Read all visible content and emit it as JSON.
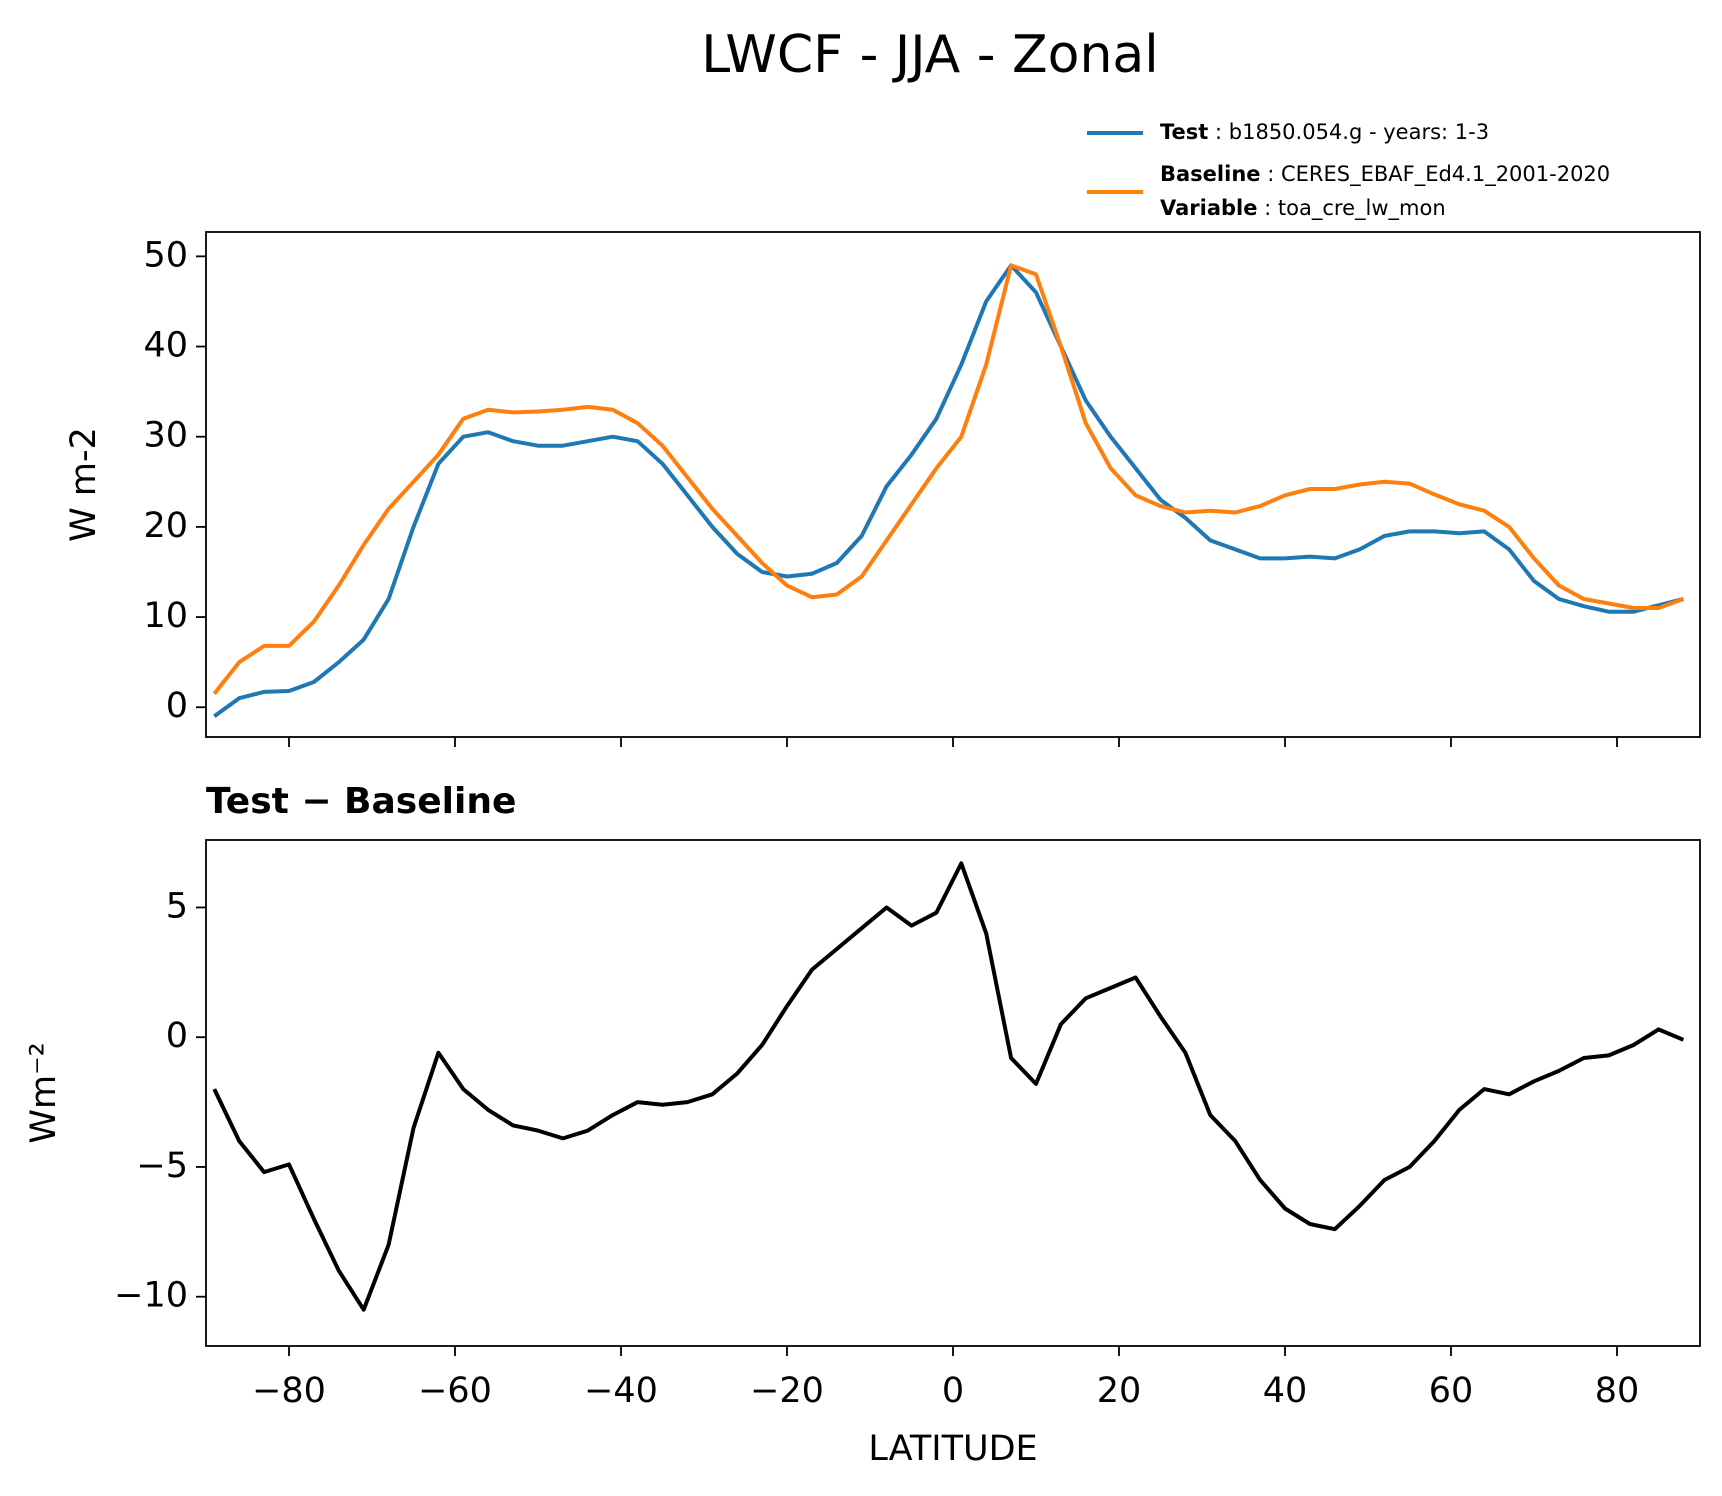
{
  "chart_data": [
    {
      "type": "line",
      "title": "LWCF - JJA - Zonal",
      "ylabel": "W m-2",
      "legend_separator": " : ",
      "x": [
        -89,
        -86,
        -83,
        -80,
        -77,
        -74,
        -71,
        -68,
        -65,
        -62,
        -59,
        -56,
        -53,
        -50,
        -47,
        -44,
        -41,
        -38,
        -35,
        -32,
        -29,
        -26,
        -23,
        -20,
        -17,
        -14,
        -11,
        -8,
        -5,
        -2,
        1,
        4,
        7,
        10,
        13,
        16,
        19,
        22,
        25,
        28,
        31,
        34,
        37,
        40,
        43,
        46,
        49,
        52,
        55,
        58,
        61,
        64,
        67,
        70,
        73,
        76,
        79,
        82,
        85,
        88
      ],
      "series": [
        {
          "name": "Test",
          "description": "b1850.054.g - years: 1-3",
          "color": "#1f77b4",
          "values": [
            -1,
            1,
            1.7,
            1.8,
            2.8,
            5,
            7.5,
            12,
            20,
            27,
            30,
            30.5,
            29.5,
            29,
            29,
            29.5,
            30,
            29.5,
            27,
            23.5,
            20,
            17,
            15,
            14.5,
            14.8,
            16,
            19,
            24.5,
            28,
            32,
            38,
            45,
            49,
            46,
            40,
            34,
            30,
            26.5,
            23,
            21,
            18.5,
            17.5,
            16.5,
            16.5,
            16.7,
            16.5,
            17.5,
            19,
            19.5,
            19.5,
            19.3,
            19.5,
            17.5,
            14,
            12,
            11.2,
            10.6,
            10.6,
            11.3,
            12
          ]
        },
        {
          "name": "Baseline",
          "description": "CERES_EBAF_Ed4.1_2001-2020",
          "extra_name": "Variable",
          "extra_description": "toa_cre_lw_mon",
          "color": "#ff7f0e",
          "values": [
            1.5,
            5,
            6.8,
            6.8,
            9.5,
            13.5,
            18,
            22,
            25,
            28,
            32,
            33,
            32.7,
            32.8,
            33,
            33.3,
            33,
            31.5,
            29,
            25.5,
            22,
            19,
            16,
            13.5,
            12.2,
            12.5,
            14.5,
            18.5,
            22.5,
            26.5,
            30,
            38,
            49,
            48,
            40,
            31.5,
            26.5,
            23.5,
            22.3,
            21.6,
            21.8,
            21.6,
            22.3,
            23.5,
            24.2,
            24.2,
            24.7,
            25,
            24.8,
            23.6,
            22.5,
            21.8,
            20,
            16.5,
            13.5,
            12,
            11.5,
            11,
            11,
            12
          ]
        }
      ],
      "xlim": [
        -90,
        90
      ],
      "xticks": [
        -80,
        -60,
        -40,
        -20,
        0,
        20,
        40,
        60,
        80
      ],
      "ylim": [
        -3.3,
        52.7
      ],
      "yticks": [
        0,
        10,
        20,
        30,
        40,
        50
      ]
    },
    {
      "type": "line",
      "title": "Test − Baseline",
      "ylabel": "Wm⁻²",
      "xlabel": "LATITUDE",
      "x": [
        -89,
        -86,
        -83,
        -80,
        -77,
        -74,
        -71,
        -68,
        -65,
        -62,
        -59,
        -56,
        -53,
        -50,
        -47,
        -44,
        -41,
        -38,
        -35,
        -32,
        -29,
        -26,
        -23,
        -20,
        -17,
        -14,
        -11,
        -8,
        -5,
        -2,
        1,
        4,
        7,
        10,
        13,
        16,
        19,
        22,
        25,
        28,
        31,
        34,
        37,
        40,
        43,
        46,
        49,
        52,
        55,
        58,
        61,
        64,
        67,
        70,
        73,
        76,
        79,
        82,
        85,
        88
      ],
      "series": [
        {
          "color": "#000000",
          "values": [
            -2,
            -4,
            -5.2,
            -4.9,
            -7,
            -9,
            -10.5,
            -8,
            -3.5,
            -0.6,
            -2,
            -2.8,
            -3.4,
            -3.6,
            -3.9,
            -3.6,
            -3,
            -2.5,
            -2.6,
            -2.5,
            -2.2,
            -1.4,
            -0.3,
            1.2,
            2.6,
            3.4,
            4.2,
            5,
            4.3,
            4.8,
            6.7,
            4,
            -0.8,
            -1.8,
            0.5,
            1.5,
            1.9,
            2.3,
            0.8,
            -0.6,
            -3,
            -4,
            -5.5,
            -6.6,
            -7.2,
            -7.4,
            -6.5,
            -5.5,
            -5,
            -4,
            -2.8,
            -2,
            -2.2,
            -1.7,
            -1.3,
            -0.8,
            -0.7,
            -0.3,
            0.3,
            -0.1
          ]
        }
      ],
      "xlim": [
        -90,
        90
      ],
      "xticks": [
        {
          "value": -80,
          "label": "−80"
        },
        {
          "value": -60,
          "label": "−60"
        },
        {
          "value": -40,
          "label": "−40"
        },
        {
          "value": -20,
          "label": "−20"
        },
        0,
        20,
        40,
        60,
        80
      ],
      "ylim": [
        -11.9,
        7.6
      ],
      "yticks": [
        {
          "value": -10,
          "label": "−10"
        },
        {
          "value": -5,
          "label": "−5"
        },
        0,
        5
      ]
    }
  ]
}
